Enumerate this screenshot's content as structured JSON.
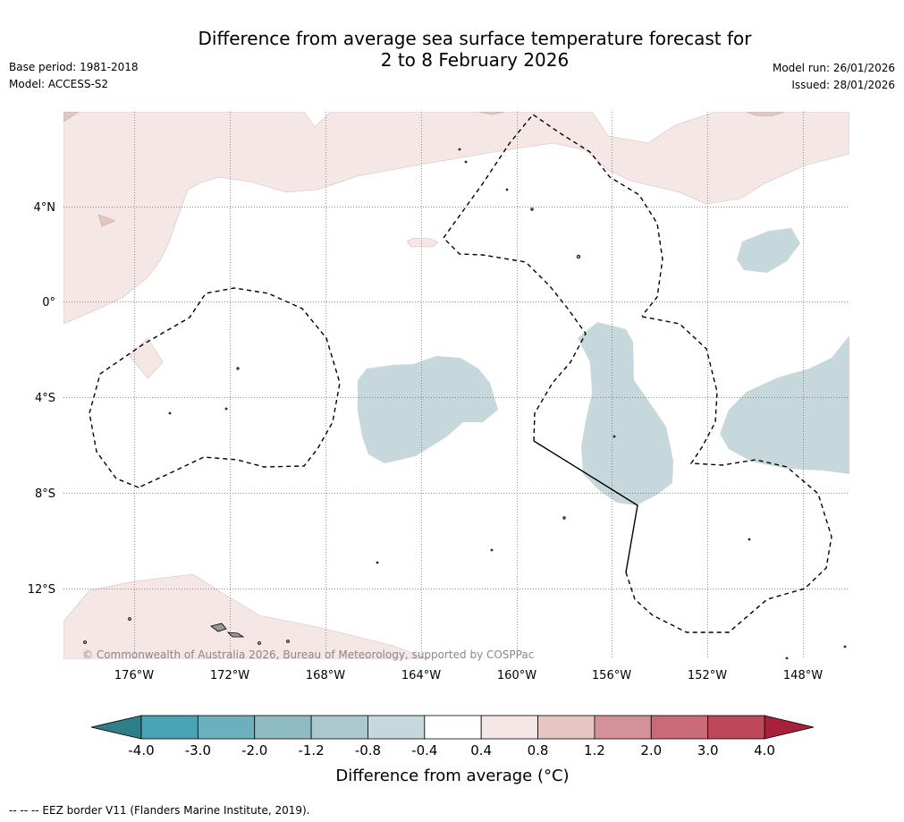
{
  "header": {
    "title_line1": "Difference from average sea surface temperature forecast for",
    "title_line2": "2 to 8 February 2026",
    "base_period": "Base period: 1981-2018",
    "model": "Model: ACCESS-S2",
    "model_run": "Model run: 26/01/2026",
    "issued": "Issued: 28/01/2026"
  },
  "map": {
    "lat_labels": [
      "4°N",
      "0°",
      "4°S",
      "8°S",
      "12°S"
    ],
    "lon_labels": [
      "176°W",
      "172°W",
      "168°W",
      "164°W",
      "160°W",
      "156°W",
      "152°W",
      "148°W"
    ],
    "copyright": "© Commonwealth of Australia 2026, Bureau of Meteorology, supported by COSPPac"
  },
  "colorbar": {
    "ticks": [
      "-4.0",
      "-3.0",
      "-2.0",
      "-1.2",
      "-0.8",
      "-0.4",
      "0.4",
      "0.8",
      "1.2",
      "2.0",
      "3.0",
      "4.0"
    ],
    "colors": [
      "#4aa3b4",
      "#6db0bd",
      "#8fbbc5",
      "#abc8cc",
      "#c7d8dc",
      "#ffffff",
      "#f4e7e6",
      "#e6c6c2",
      "#d5919a",
      "#c96a76",
      "#bf4858"
    ],
    "low_color": "#2f7f89",
    "high_color": "#a8213a",
    "label": "Difference from average (°C)"
  },
  "footer": {
    "legend": "--  --  -- EEZ border V11 (Flanders Marine Institute, 2019)."
  }
}
